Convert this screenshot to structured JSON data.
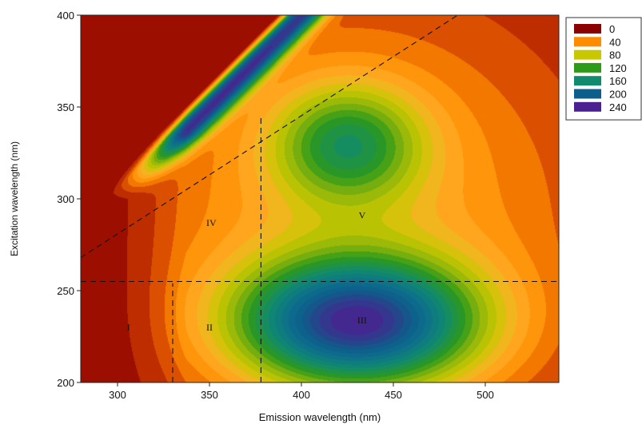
{
  "chart_data": {
    "type": "heatmap",
    "subtype": "filled-contour",
    "xlabel": "Emission wavelength (nm)",
    "ylabel": "Excitation wavelength (nm)",
    "xlim": [
      280,
      540
    ],
    "ylim": [
      200,
      400
    ],
    "xticks": [
      300,
      350,
      400,
      450,
      500
    ],
    "yticks": [
      200,
      250,
      300,
      350,
      400
    ],
    "grid": false,
    "legend_position": "top-right",
    "legend": [
      {
        "label": "0",
        "color": "#8b0000"
      },
      {
        "label": "40",
        "color": "#ff8c00"
      },
      {
        "label": "80",
        "color": "#c8c800"
      },
      {
        "label": "120",
        "color": "#2e9a1a"
      },
      {
        "label": "160",
        "color": "#118a6e"
      },
      {
        "label": "200",
        "color": "#0d5e8a"
      },
      {
        "label": "240",
        "color": "#4b2090"
      }
    ],
    "contour_levels": [
      0,
      10,
      20,
      30,
      40,
      50,
      60,
      70,
      80,
      90,
      100,
      110,
      120,
      130,
      140,
      150,
      160,
      170,
      180,
      190,
      200
    ],
    "peaks": [
      {
        "name": "Rayleigh scatter ridge",
        "em_minus_ex": 0,
        "ex_range": [
          320,
          400
        ],
        "intensity": 200
      },
      {
        "name": "peak III",
        "em": 430,
        "ex": 233,
        "intensity": 195
      },
      {
        "name": "peak V",
        "em": 425,
        "ex": 330,
        "intensity": 125
      }
    ],
    "regions": [
      {
        "label": "I",
        "em": 306,
        "ex": 230
      },
      {
        "label": "II",
        "em": 350,
        "ex": 230
      },
      {
        "label": "III",
        "em": 433,
        "ex": 234
      },
      {
        "label": "IV",
        "em": 351,
        "ex": 287
      },
      {
        "label": "V",
        "em": 433,
        "ex": 291
      }
    ],
    "boundary_lines": [
      {
        "from": [
          280,
          255
        ],
        "to": [
          540,
          255
        ]
      },
      {
        "from": [
          330,
          200
        ],
        "to": [
          330,
          254
        ]
      },
      {
        "from": [
          378,
          200
        ],
        "to": [
          378,
          345
        ]
      },
      {
        "from": [
          280,
          268
        ],
        "to": [
          485,
          400
        ]
      }
    ]
  }
}
